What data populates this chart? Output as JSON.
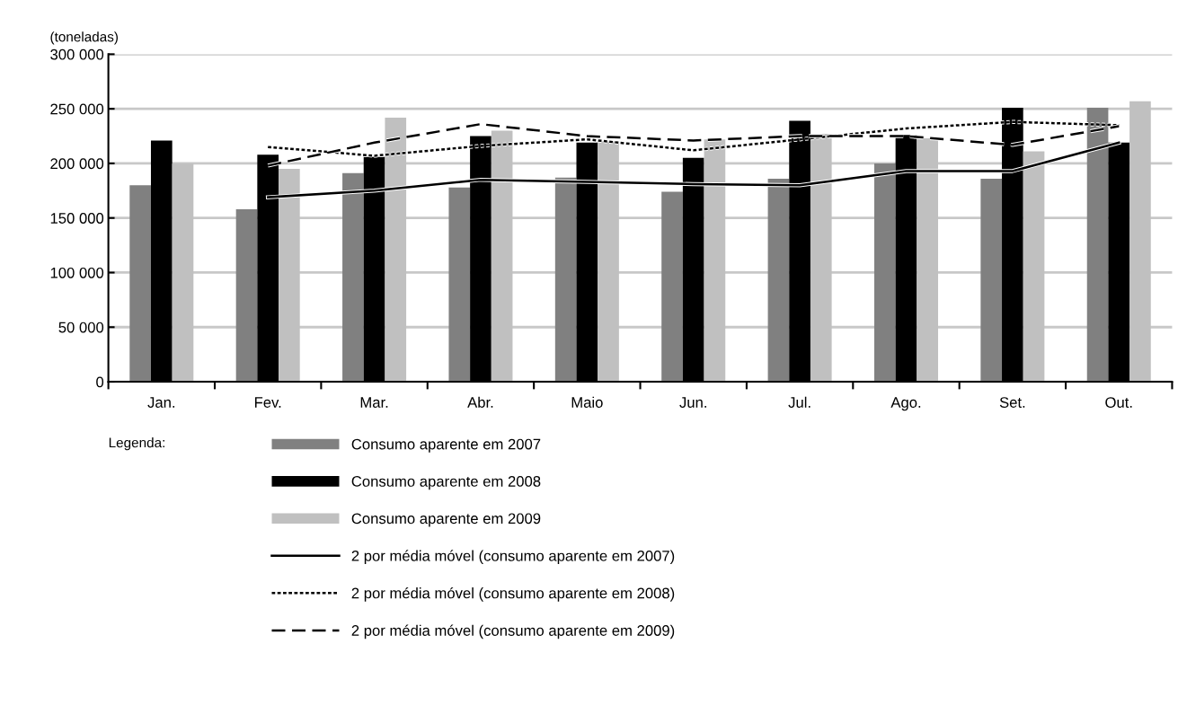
{
  "chart_data": {
    "type": "bar",
    "ylabel": "(toneladas)",
    "legend_title": "Legenda:",
    "categories": [
      "Jan.",
      "Fev.",
      "Mar.",
      "Abr.",
      "Maio",
      "Jun.",
      "Jul.",
      "Ago.",
      "Set.",
      "Out."
    ],
    "series": [
      {
        "name": "Consumo aparente em 2007",
        "color": "#808080",
        "values": [
          180000,
          158000,
          191000,
          178000,
          187000,
          174000,
          186000,
          200000,
          186000,
          251000
        ]
      },
      {
        "name": "Consumo aparente em 2008",
        "color": "#000000",
        "values": [
          221000,
          208000,
          206000,
          225000,
          219000,
          205000,
          239000,
          226000,
          251000,
          219000
        ]
      },
      {
        "name": "Consumo aparente em 2009",
        "color": "#c0c0c0",
        "values": [
          200000,
          195000,
          242000,
          230000,
          220000,
          222000,
          227000,
          223000,
          211000,
          257000
        ]
      },
      {
        "name": "2 por média móvel (consumo aparente em 2007)",
        "type": "line",
        "line_style": "solid",
        "color": "#000000",
        "x": [
          "Fev.",
          "Mar.",
          "Abr.",
          "Maio",
          "Jun.",
          "Jul.",
          "Ago.",
          "Set.",
          "Out."
        ],
        "values": [
          169000,
          175000,
          185000,
          183000,
          181000,
          180000,
          193000,
          193000,
          219000
        ]
      },
      {
        "name": "2 por média móvel (consumo aparente em 2008)",
        "type": "line",
        "line_style": "dotted",
        "color": "#000000",
        "x": [
          "Fev.",
          "Mar.",
          "Abr.",
          "Maio",
          "Jun.",
          "Jul.",
          "Ago.",
          "Set.",
          "Out."
        ],
        "values": [
          215000,
          207000,
          216000,
          222000,
          212000,
          222000,
          232000,
          238000,
          235000
        ]
      },
      {
        "name": "2 por média móvel (consumo aparente em 2009)",
        "type": "line",
        "line_style": "dashed",
        "color": "#000000",
        "x": [
          "Fev.",
          "Mar.",
          "Abr.",
          "Maio",
          "Jun.",
          "Jul.",
          "Ago.",
          "Set.",
          "Out."
        ],
        "values": [
          198000,
          219000,
          236000,
          225000,
          221000,
          225000,
          225000,
          217000,
          234000
        ]
      }
    ],
    "ylim": [
      0,
      300000
    ],
    "yticks": [
      0,
      {
        "value": 50000,
        "label": "50 000"
      },
      {
        "value": 100000,
        "label": "100 000"
      },
      {
        "value": 150000,
        "label": "150 000"
      },
      {
        "value": 200000,
        "label": "200 000"
      },
      {
        "value": 250000,
        "label": "250 000"
      },
      {
        "value": 300000,
        "label": "300 000"
      }
    ],
    "grid": "y",
    "legend": "bottom"
  }
}
